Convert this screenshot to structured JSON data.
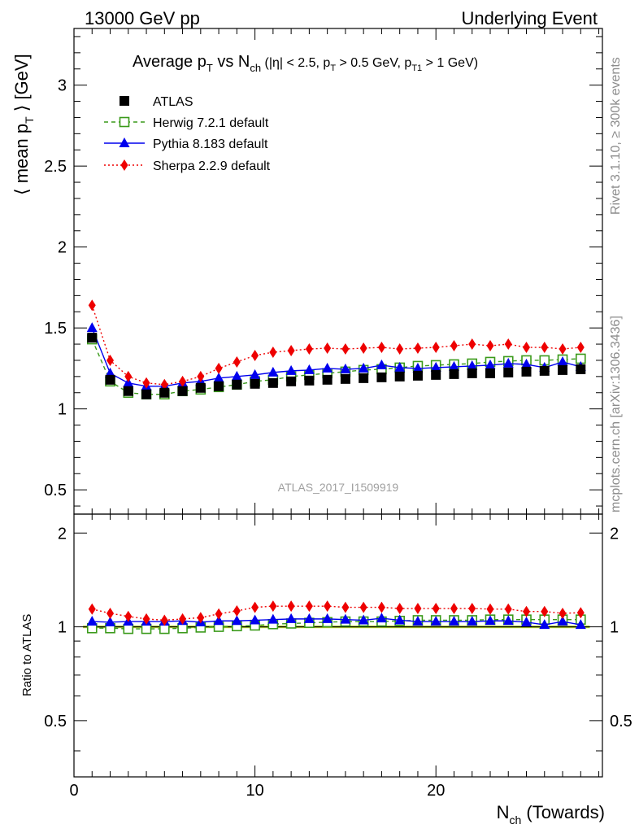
{
  "header": {
    "left": "13000 GeV pp",
    "right": "Underlying Event"
  },
  "side_labels": {
    "rivet": "Rivet 3.1.10, ≥ 300k events",
    "mcplots": "mcplots.cern.ch [arXiv:1306.3436]"
  },
  "title": {
    "a": "Average p",
    "a_sub": "T",
    "b": " vs N",
    "b_sub": "ch",
    "c": " (|η| < 2.5, p",
    "c_sub": "T",
    "d": " > 0.5 GeV, p",
    "d_sub": "T1",
    "e": " > 1 GeV)"
  },
  "ylabel": {
    "pre": "⟨ mean p",
    "sub": "T",
    "post": " ⟩ [GeV]"
  },
  "ratio_ylabel": "Ratio to ATLAS",
  "xlabel": {
    "main": "N",
    "sub": "ch",
    "post": " (Towards)"
  },
  "analysis_id": "ATLAS_2017_I1509919",
  "colors": {
    "atlas": "#000000",
    "herwig": "#3a9a1a",
    "pythia": "#0000ee",
    "sherpa": "#ee0000",
    "band": "#ccf03c"
  },
  "chart_data": {
    "type": "line",
    "x": [
      1,
      2,
      3,
      4,
      5,
      6,
      7,
      8,
      9,
      10,
      11,
      12,
      13,
      14,
      15,
      16,
      17,
      18,
      19,
      20,
      21,
      22,
      23,
      24,
      25,
      26,
      27,
      28
    ],
    "xlim": [
      0,
      29.2
    ],
    "main_ylim": [
      0.35,
      3.35
    ],
    "ratio_ylim": [
      0.33,
      2.3
    ],
    "main_yticks": [
      0.5,
      1,
      1.5,
      2,
      2.5,
      3
    ],
    "main_ytick_labels": [
      "0.5",
      "1",
      "1.5",
      "2",
      "2.5",
      "3"
    ],
    "ratio_yticks": [
      0.5,
      1,
      2
    ],
    "ratio_ytick_labels": [
      "0.5",
      "1",
      "2"
    ],
    "xticks": [
      0,
      10,
      20
    ],
    "xtick_labels": [
      "0",
      "10",
      "20"
    ],
    "series": [
      {
        "name": "ATLAS",
        "marker": "filled-square",
        "values": [
          1.44,
          1.18,
          1.11,
          1.09,
          1.1,
          1.11,
          1.13,
          1.14,
          1.15,
          1.155,
          1.16,
          1.17,
          1.175,
          1.18,
          1.185,
          1.19,
          1.195,
          1.2,
          1.205,
          1.21,
          1.215,
          1.22,
          1.22,
          1.225,
          1.23,
          1.235,
          1.24,
          1.245
        ],
        "ratio": [
          1,
          1,
          1,
          1,
          1,
          1,
          1,
          1,
          1,
          1,
          1,
          1,
          1,
          1,
          1,
          1,
          1,
          1,
          1,
          1,
          1,
          1,
          1,
          1,
          1,
          1,
          1,
          1
        ]
      },
      {
        "name": "Herwig 7.2.1 default",
        "marker": "open-square",
        "values": [
          1.43,
          1.17,
          1.1,
          1.09,
          1.09,
          1.11,
          1.12,
          1.135,
          1.15,
          1.17,
          1.18,
          1.2,
          1.21,
          1.22,
          1.23,
          1.24,
          1.245,
          1.255,
          1.265,
          1.27,
          1.275,
          1.28,
          1.29,
          1.295,
          1.3,
          1.3,
          1.305,
          1.31
        ],
        "ratio": [
          0.99,
          0.99,
          0.985,
          0.985,
          0.985,
          0.99,
          0.995,
          1.0,
          1.005,
          1.01,
          1.02,
          1.025,
          1.03,
          1.035,
          1.04,
          1.04,
          1.04,
          1.045,
          1.05,
          1.05,
          1.05,
          1.05,
          1.055,
          1.055,
          1.055,
          1.055,
          1.055,
          1.055
        ]
      },
      {
        "name": "Pythia 8.183 default",
        "marker": "filled-triangle",
        "values": [
          1.5,
          1.22,
          1.16,
          1.14,
          1.14,
          1.16,
          1.17,
          1.19,
          1.2,
          1.21,
          1.225,
          1.235,
          1.24,
          1.25,
          1.245,
          1.25,
          1.27,
          1.255,
          1.25,
          1.255,
          1.26,
          1.265,
          1.27,
          1.28,
          1.275,
          1.255,
          1.29,
          1.26
        ],
        "ratio": [
          1.04,
          1.035,
          1.04,
          1.04,
          1.04,
          1.045,
          1.035,
          1.045,
          1.045,
          1.05,
          1.055,
          1.06,
          1.06,
          1.06,
          1.055,
          1.05,
          1.065,
          1.05,
          1.04,
          1.04,
          1.04,
          1.04,
          1.045,
          1.045,
          1.035,
          1.015,
          1.04,
          1.015
        ]
      },
      {
        "name": "Sherpa 2.2.9 default",
        "marker": "filled-diamond",
        "values": [
          1.64,
          1.3,
          1.2,
          1.16,
          1.15,
          1.17,
          1.2,
          1.25,
          1.29,
          1.33,
          1.35,
          1.36,
          1.37,
          1.375,
          1.37,
          1.375,
          1.38,
          1.37,
          1.375,
          1.38,
          1.39,
          1.4,
          1.39,
          1.4,
          1.38,
          1.38,
          1.37,
          1.38
        ],
        "ratio": [
          1.14,
          1.105,
          1.08,
          1.06,
          1.05,
          1.06,
          1.07,
          1.1,
          1.125,
          1.155,
          1.165,
          1.165,
          1.165,
          1.165,
          1.155,
          1.155,
          1.155,
          1.145,
          1.145,
          1.145,
          1.145,
          1.145,
          1.14,
          1.14,
          1.12,
          1.12,
          1.105,
          1.11
        ]
      }
    ]
  }
}
